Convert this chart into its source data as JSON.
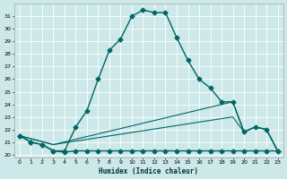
{
  "xlabel": "Humidex (Indice chaleur)",
  "background_color": "#cce8e8",
  "grid_color": "#ffffff",
  "line_color": "#006666",
  "xlim": [
    -0.5,
    23.5
  ],
  "ylim": [
    19.8,
    32.0
  ],
  "yticks": [
    20,
    21,
    22,
    23,
    24,
    25,
    26,
    27,
    28,
    29,
    30,
    31
  ],
  "xticks": [
    0,
    1,
    2,
    3,
    4,
    5,
    6,
    7,
    8,
    9,
    10,
    11,
    12,
    13,
    14,
    15,
    16,
    17,
    18,
    19,
    20,
    21,
    22,
    23
  ],
  "series": [
    {
      "x": [
        0,
        1,
        2,
        3,
        4,
        5,
        6,
        7,
        8,
        9,
        10,
        11,
        12,
        13,
        14,
        15,
        16,
        17,
        18,
        19,
        20,
        21,
        22,
        23
      ],
      "y": [
        21.5,
        21.0,
        20.8,
        20.3,
        20.3,
        22.2,
        23.5,
        26.0,
        28.3,
        29.2,
        31.0,
        31.5,
        31.3,
        31.3,
        29.3,
        27.5,
        26.0,
        25.3,
        24.2,
        24.2,
        21.8,
        22.2,
        22.0,
        20.3
      ],
      "marker": "D",
      "markersize": 2.5,
      "linewidth": 1.0
    },
    {
      "x": [
        0,
        1,
        2,
        3,
        4,
        5,
        6,
        7,
        8,
        9,
        10,
        11,
        12,
        13,
        14,
        15,
        16,
        17,
        18,
        19,
        20,
        21,
        22,
        23
      ],
      "y": [
        21.5,
        21.0,
        20.8,
        20.3,
        20.2,
        20.3,
        20.3,
        20.3,
        20.3,
        20.3,
        20.3,
        20.3,
        20.3,
        20.3,
        20.3,
        20.3,
        20.3,
        20.3,
        20.3,
        20.3,
        20.3,
        20.3,
        20.3,
        20.3
      ],
      "marker": "D",
      "markersize": 2.5,
      "linewidth": 1.0
    },
    {
      "comment": "upper diagonal line - from (0,21.5) rising to (19,24.2) then drops to (20,21.8),(21,22.2),(22,22.0),(23,20.3)",
      "x": [
        0,
        3,
        19,
        20,
        21,
        22,
        23
      ],
      "y": [
        21.5,
        20.8,
        24.2,
        21.8,
        22.2,
        22.0,
        20.3
      ],
      "marker": null,
      "markersize": 0,
      "linewidth": 0.8
    },
    {
      "x": [
        0,
        3,
        19,
        20,
        21,
        22,
        23
      ],
      "y": [
        21.5,
        20.8,
        23.0,
        21.8,
        22.2,
        22.0,
        20.3
      ],
      "marker": null,
      "markersize": 0,
      "linewidth": 0.8
    }
  ]
}
